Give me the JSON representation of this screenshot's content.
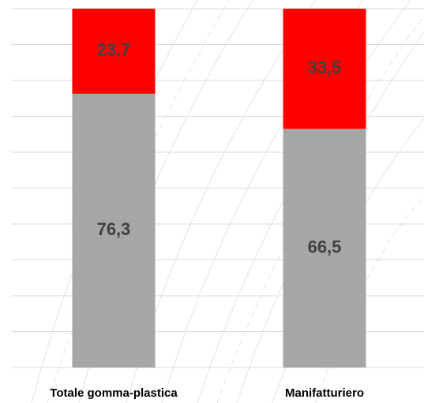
{
  "chart_data": {
    "type": "bar",
    "stacked": true,
    "percent_stacked": true,
    "title": "",
    "xlabel": "",
    "ylabel": "",
    "ylim": [
      0,
      100
    ],
    "grid": true,
    "legend": "none",
    "categories": [
      "Totale gomma-plastica",
      "Manifatturiero"
    ],
    "series": [
      {
        "values": [
          76.3,
          66.5
        ],
        "labels": [
          "76,3",
          "66,5"
        ],
        "color": "#a6a6a6"
      },
      {
        "values": [
          23.7,
          33.5
        ],
        "labels": [
          "23,7",
          "33,5"
        ],
        "color": "#ff0000"
      }
    ]
  }
}
